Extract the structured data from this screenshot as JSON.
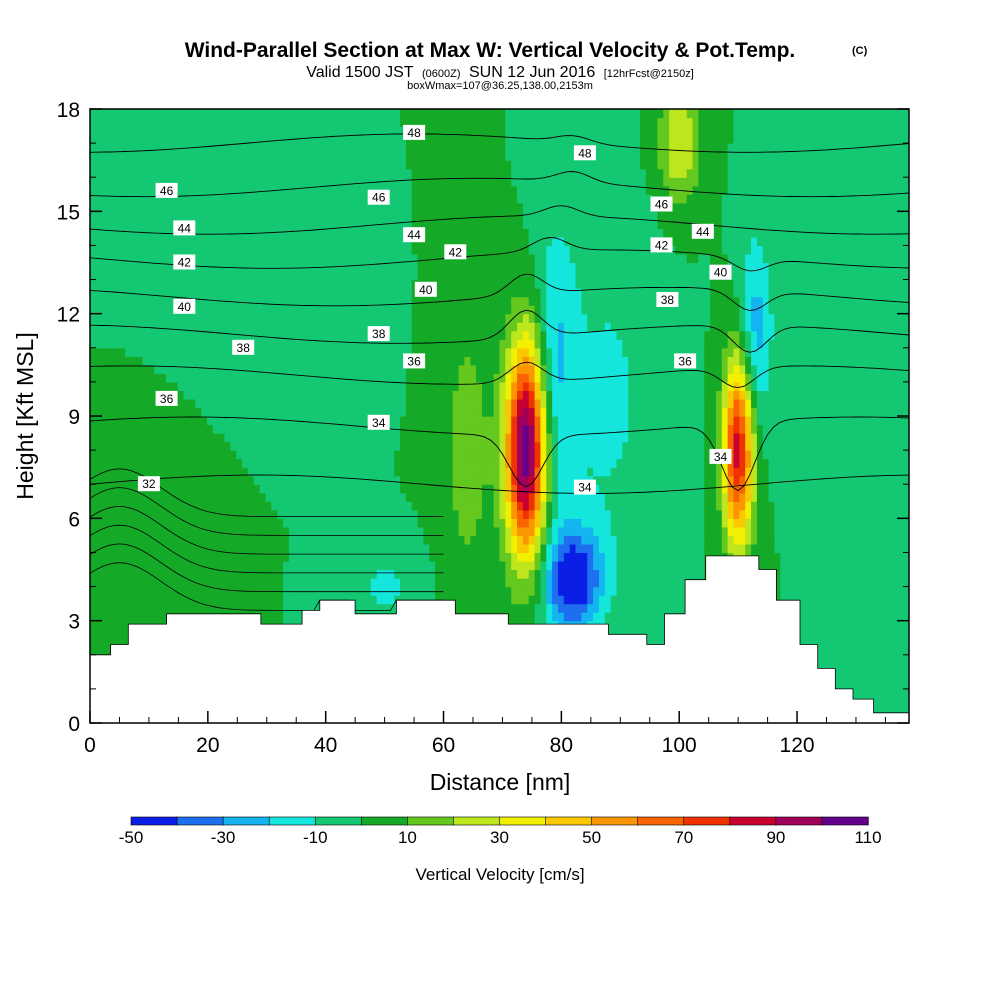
{
  "header": {
    "title": "Wind-Parallel Section at Max W: Vertical Velocity & Pot.Temp.",
    "copyright": "(C)",
    "valid_prefix": "Valid 1500 JST",
    "valid_utc": "(0600Z)",
    "valid_date": "SUN 12 Jun 2016",
    "forecast": "[12hrFcst@2150z]",
    "box_info": "boxWmax=107@36.25,138.00,2153m"
  },
  "chart_data": {
    "type": "heatmap",
    "xlabel": "Distance [nm]",
    "ylabel": "Height [Kft MSL]",
    "xlim": [
      0,
      139
    ],
    "ylim": [
      0,
      18
    ],
    "x_ticks": [
      0,
      20,
      40,
      60,
      80,
      100,
      120
    ],
    "y_ticks": [
      0,
      3,
      6,
      9,
      12,
      15,
      18
    ],
    "colorbar": {
      "title": "Vertical Velocity [cm/s]",
      "levels": [
        -50,
        -40,
        -30,
        -20,
        -10,
        0,
        10,
        20,
        30,
        40,
        50,
        60,
        70,
        80,
        90,
        100,
        110
      ],
      "tick_labels": [
        "-50",
        "-30",
        "-10",
        "10",
        "30",
        "50",
        "70",
        "90",
        "110"
      ],
      "colors": [
        "#0a1ee6",
        "#1e6ef0",
        "#14b4f0",
        "#14e6dc",
        "#14c873",
        "#14aa28",
        "#64c81e",
        "#bee61e",
        "#f0f000",
        "#fac800",
        "#fa9600",
        "#fa6400",
        "#f03200",
        "#c80032",
        "#a0005a",
        "#64008c"
      ]
    },
    "w_field": {
      "background_cm_s": 0,
      "features": [
        {
          "x": 74,
          "z": 8.0,
          "peak": 110,
          "sx": 2.4,
          "sz": 2.2
        },
        {
          "x": 110,
          "z": 8.0,
          "peak": 85,
          "sx": 1.8,
          "sz": 1.9
        },
        {
          "x": 82,
          "z": 4.2,
          "peak": -50,
          "sx": 3.5,
          "sz": 1.1
        },
        {
          "x": 79,
          "z": 10.5,
          "peak": -20,
          "sx": 2.5,
          "sz": 3.0
        },
        {
          "x": 113,
          "z": 11.5,
          "peak": -25,
          "sx": 2.0,
          "sz": 2.0
        },
        {
          "x": 64,
          "z": 8.0,
          "peak": 15,
          "sx": 3.0,
          "sz": 3.0
        },
        {
          "x": 100,
          "z": 17.0,
          "peak": 30,
          "sx": 2.5,
          "sz": 1.2
        },
        {
          "x": 12,
          "z": 5.0,
          "peak": 10,
          "sx": 5.0,
          "sz": 2.0
        },
        {
          "x": 50,
          "z": 4.0,
          "peak": -12,
          "sx": 4.0,
          "sz": 0.8
        },
        {
          "x": 88,
          "z": 9.5,
          "peak": -12,
          "sx": 6.0,
          "sz": 3.5
        },
        {
          "x": 30,
          "z": 12.0,
          "peak": -8,
          "sx": 8.0,
          "sz": 1.5
        }
      ]
    },
    "terrain_kft": [
      [
        0,
        2.0
      ],
      [
        3.5,
        2.3
      ],
      [
        6.5,
        2.9
      ],
      [
        13,
        3.2
      ],
      [
        29,
        2.9
      ],
      [
        36,
        3.3
      ],
      [
        39,
        3.6
      ],
      [
        45,
        3.2
      ],
      [
        52,
        3.6
      ],
      [
        62,
        3.2
      ],
      [
        71,
        2.9
      ],
      [
        88,
        2.6
      ],
      [
        94.5,
        2.3
      ],
      [
        97.5,
        3.2
      ],
      [
        101,
        4.2
      ],
      [
        104.5,
        4.9
      ],
      [
        113.5,
        4.5
      ],
      [
        116.5,
        3.6
      ],
      [
        120.5,
        2.3
      ],
      [
        123.5,
        1.6
      ],
      [
        126.5,
        1.0
      ],
      [
        129.5,
        0.7
      ],
      [
        133,
        0.3
      ],
      [
        139,
        0.3
      ]
    ],
    "theta_contours": [
      {
        "label": "32",
        "base": 7.0,
        "cells": [
          {
            "x": 74,
            "dz": 0
          }
        ]
      },
      {
        "label": "34",
        "base": 8.7,
        "cells": [
          {
            "x": 74,
            "dz": -1.5
          },
          {
            "x": 110,
            "dz": -2.0
          }
        ]
      },
      {
        "label": "36",
        "base": 10.2,
        "cells": [
          {
            "x": 74,
            "dz": 0.6
          },
          {
            "x": 110,
            "dz": -0.6
          }
        ]
      },
      {
        "label": "38",
        "base": 11.4,
        "cells": [
          {
            "x": 74,
            "dz": 0.8
          },
          {
            "x": 112,
            "dz": -0.8
          }
        ]
      },
      {
        "label": "40",
        "base": 12.5,
        "cells": [
          {
            "x": 74,
            "dz": 0.6
          },
          {
            "x": 112,
            "dz": -0.6
          }
        ]
      },
      {
        "label": "42",
        "base": 13.6,
        "cells": [
          {
            "x": 78,
            "dz": 0.4
          },
          {
            "x": 112,
            "dz": -0.4
          }
        ]
      },
      {
        "label": "44",
        "base": 14.6,
        "cells": [
          {
            "x": 80,
            "dz": 0.3
          }
        ]
      },
      {
        "label": "46",
        "base": 15.7,
        "cells": [
          {
            "x": 82,
            "dz": 0.3
          }
        ]
      },
      {
        "label": "48",
        "base": 17.0,
        "cells": [
          {
            "x": 82,
            "dz": 0.2
          }
        ]
      }
    ],
    "contour_labels": [
      {
        "text": "32",
        "x": 10,
        "z": 7.0
      },
      {
        "text": "34",
        "x": 49,
        "z": 8.8
      },
      {
        "text": "34",
        "x": 84,
        "z": 6.9
      },
      {
        "text": "34",
        "x": 107,
        "z": 7.8
      },
      {
        "text": "36",
        "x": 13,
        "z": 9.5
      },
      {
        "text": "36",
        "x": 55,
        "z": 10.6
      },
      {
        "text": "36",
        "x": 101,
        "z": 10.6
      },
      {
        "text": "38",
        "x": 26,
        "z": 11.0
      },
      {
        "text": "38",
        "x": 49,
        "z": 11.4
      },
      {
        "text": "38",
        "x": 98,
        "z": 12.4
      },
      {
        "text": "40",
        "x": 16,
        "z": 12.2
      },
      {
        "text": "40",
        "x": 57,
        "z": 12.7
      },
      {
        "text": "40",
        "x": 107,
        "z": 13.2
      },
      {
        "text": "42",
        "x": 16,
        "z": 13.5
      },
      {
        "text": "42",
        "x": 62,
        "z": 13.8
      },
      {
        "text": "42",
        "x": 97,
        "z": 14.0
      },
      {
        "text": "44",
        "x": 16,
        "z": 14.5
      },
      {
        "text": "44",
        "x": 55,
        "z": 14.3
      },
      {
        "text": "44",
        "x": 104,
        "z": 14.4
      },
      {
        "text": "46",
        "x": 13,
        "z": 15.6
      },
      {
        "text": "46",
        "x": 49,
        "z": 15.4
      },
      {
        "text": "46",
        "x": 97,
        "z": 15.2
      },
      {
        "text": "48",
        "x": 55,
        "z": 17.3
      },
      {
        "text": "48",
        "x": 84,
        "z": 16.7
      }
    ]
  }
}
